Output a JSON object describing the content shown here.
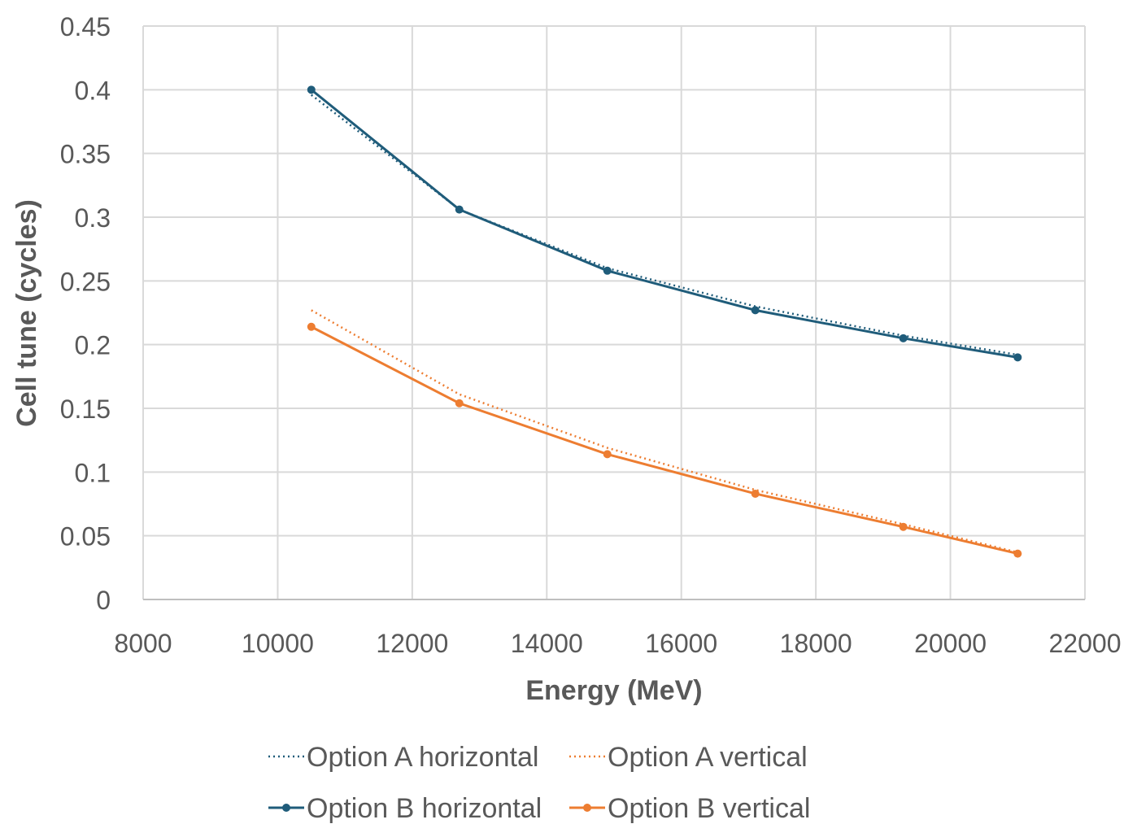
{
  "chart_data": {
    "type": "line",
    "title": "",
    "xlabel": "Energy (MeV)",
    "ylabel": "Cell tune (cycles)",
    "xlim": [
      8000,
      22000
    ],
    "ylim": [
      0,
      0.45
    ],
    "xticks": [
      "8000",
      "10000",
      "12000",
      "14000",
      "16000",
      "18000",
      "20000",
      "22000"
    ],
    "yticks": [
      "0",
      "0.05",
      "0.1",
      "0.15",
      "0.2",
      "0.25",
      "0.3",
      "0.35",
      "0.4",
      "0.45"
    ],
    "grid": true,
    "legend_position": "bottom",
    "x": [
      10500,
      12700,
      14900,
      17100,
      19300,
      21000
    ],
    "series": [
      {
        "name": "Option A horizontal",
        "color": "#1f5c7a",
        "style": "dotted",
        "markers": false,
        "values": [
          0.396,
          0.306,
          0.26,
          0.23,
          0.207,
          0.192
        ]
      },
      {
        "name": "Option A vertical",
        "color": "#ed7d31",
        "style": "dotted",
        "markers": false,
        "values": [
          0.227,
          0.161,
          0.119,
          0.086,
          0.059,
          0.037
        ]
      },
      {
        "name": "Option B horizontal",
        "color": "#1f5c7a",
        "style": "solid",
        "markers": true,
        "values": [
          0.4,
          0.306,
          0.258,
          0.227,
          0.205,
          0.19
        ]
      },
      {
        "name": "Option B vertical",
        "color": "#ed7d31",
        "style": "solid",
        "markers": true,
        "values": [
          0.214,
          0.154,
          0.114,
          0.083,
          0.057,
          0.036
        ]
      }
    ]
  }
}
